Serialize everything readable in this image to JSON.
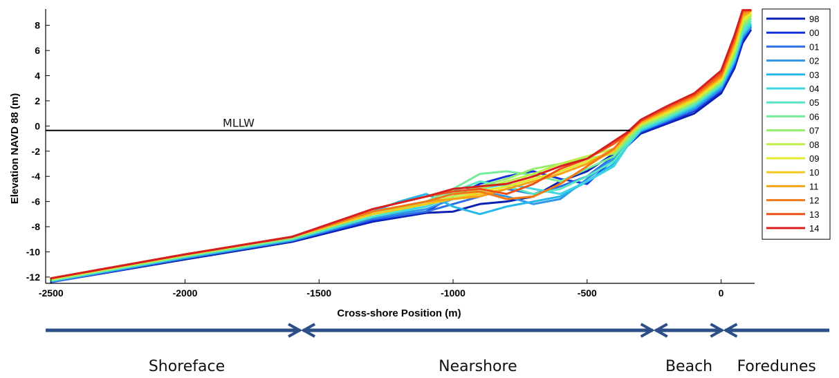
{
  "chart_data": {
    "type": "line",
    "title": "",
    "xlabel": "Cross-shore Position (m)",
    "ylabel": "Elevation NAVD 88 (m)",
    "xlim": [
      -2520,
      125
    ],
    "ylim": [
      -12.5,
      9.3
    ],
    "xticks": [
      -2500,
      -2000,
      -1500,
      -1000,
      -500,
      0
    ],
    "xtick_labels": [
      "-2500",
      "-2000",
      "-1500",
      "-1000",
      "-500",
      "0"
    ],
    "yticks": [
      -12,
      -10,
      -8,
      -6,
      -4,
      -2,
      0,
      2,
      4,
      6,
      8
    ],
    "ytick_labels": [
      "-12",
      "-10",
      "-8",
      "-6",
      "-4",
      "-2",
      "0",
      "2",
      "4",
      "6",
      "8"
    ],
    "grid": false,
    "legend_position": "right",
    "reference_line": {
      "label": "MLLW",
      "y": -0.35
    },
    "series": [
      {
        "name": "98",
        "color": "#0b1fb0",
        "x": [
          -2500,
          -2000,
          -1600,
          -1300,
          -1100,
          -1000,
          -900,
          -800,
          -700,
          -600,
          -500,
          -400,
          -350,
          -300,
          -200,
          -100,
          0,
          50,
          80,
          110
        ],
        "y": [
          -12.4,
          -10.6,
          -9.2,
          -7.6,
          -6.9,
          -6.8,
          -6.2,
          -6.0,
          -5.6,
          -4.4,
          -3.6,
          -2.2,
          -1.6,
          -0.6,
          0.2,
          1.0,
          2.6,
          4.6,
          6.6,
          7.6
        ]
      },
      {
        "name": "00",
        "color": "#1432e0",
        "x": [
          -2500,
          -2000,
          -1600,
          -1300,
          -1100,
          -1000,
          -900,
          -800,
          -700,
          -600,
          -500,
          -400,
          -350,
          -300,
          -200,
          -100,
          0,
          50,
          80,
          110
        ],
        "y": [
          -12.4,
          -10.5,
          -9.1,
          -7.5,
          -6.8,
          -5.6,
          -4.6,
          -4.0,
          -3.6,
          -4.2,
          -4.6,
          -2.6,
          -1.6,
          -0.5,
          0.3,
          1.2,
          2.8,
          4.8,
          6.8,
          7.8
        ]
      },
      {
        "name": "01",
        "color": "#2f6fe6",
        "x": [
          -2500,
          -2000,
          -1600,
          -1300,
          -1100,
          -1000,
          -900,
          -800,
          -700,
          -600,
          -500,
          -400,
          -350,
          -300,
          -200,
          -100,
          0,
          50,
          80,
          110
        ],
        "y": [
          -12.4,
          -10.5,
          -9.1,
          -7.4,
          -6.8,
          -6.2,
          -5.6,
          -5.0,
          -5.4,
          -4.8,
          -4.0,
          -2.4,
          -1.4,
          -0.4,
          0.4,
          1.3,
          2.9,
          5.0,
          7.0,
          7.8
        ]
      },
      {
        "name": "02",
        "color": "#2e95e8",
        "x": [
          -2500,
          -2000,
          -1600,
          -1300,
          -1100,
          -1000,
          -900,
          -800,
          -700,
          -600,
          -500,
          -400,
          -350,
          -300,
          -200,
          -100,
          0,
          50,
          80,
          110
        ],
        "y": [
          -12.3,
          -10.5,
          -9.1,
          -7.3,
          -6.6,
          -5.8,
          -5.2,
          -5.6,
          -6.2,
          -5.8,
          -4.2,
          -2.6,
          -1.5,
          -0.4,
          0.5,
          1.4,
          3.0,
          5.1,
          7.1,
          7.9
        ]
      },
      {
        "name": "03",
        "color": "#25b6ec",
        "x": [
          -2500,
          -2000,
          -1600,
          -1300,
          -1200,
          -1100,
          -1000,
          -900,
          -800,
          -700,
          -600,
          -500,
          -400,
          -350,
          -300,
          -200,
          -100,
          0,
          50,
          80,
          110
        ],
        "y": [
          -12.3,
          -10.4,
          -9.0,
          -6.8,
          -6.0,
          -5.4,
          -6.4,
          -7.0,
          -6.4,
          -6.0,
          -5.6,
          -4.4,
          -3.0,
          -1.6,
          -0.4,
          0.5,
          1.5,
          3.1,
          5.2,
          7.2,
          8.0
        ]
      },
      {
        "name": "04",
        "color": "#3fd4e4",
        "x": [
          -2500,
          -2000,
          -1600,
          -1300,
          -1100,
          -1000,
          -900,
          -800,
          -700,
          -600,
          -500,
          -400,
          -350,
          -300,
          -200,
          -100,
          0,
          50,
          80,
          110
        ],
        "y": [
          -12.3,
          -10.4,
          -9.0,
          -7.2,
          -6.4,
          -5.6,
          -5.0,
          -4.6,
          -5.0,
          -5.4,
          -4.4,
          -3.2,
          -1.6,
          -0.3,
          0.6,
          1.6,
          3.2,
          5.3,
          7.3,
          8.1
        ]
      },
      {
        "name": "05",
        "color": "#55e6c2",
        "x": [
          -2500,
          -2000,
          -1600,
          -1300,
          -1100,
          -1000,
          -900,
          -800,
          -700,
          -600,
          -500,
          -400,
          -350,
          -300,
          -200,
          -100,
          0,
          50,
          80,
          110
        ],
        "y": [
          -12.3,
          -10.4,
          -9.0,
          -7.2,
          -6.2,
          -5.2,
          -4.4,
          -4.8,
          -5.4,
          -5.0,
          -4.0,
          -2.8,
          -1.4,
          -0.2,
          0.7,
          1.7,
          3.3,
          5.5,
          7.6,
          8.3
        ]
      },
      {
        "name": "06",
        "color": "#74ec9a",
        "x": [
          -2500,
          -2000,
          -1600,
          -1300,
          -1100,
          -1000,
          -900,
          -800,
          -700,
          -600,
          -500,
          -400,
          -350,
          -300,
          -200,
          -100,
          0,
          50,
          80,
          110
        ],
        "y": [
          -12.2,
          -10.3,
          -8.9,
          -7.0,
          -6.0,
          -5.0,
          -3.8,
          -3.6,
          -3.9,
          -4.4,
          -3.4,
          -2.4,
          -1.2,
          -0.1,
          0.8,
          1.8,
          3.4,
          5.6,
          7.8,
          8.5
        ]
      },
      {
        "name": "07",
        "color": "#96ec6e",
        "x": [
          -2500,
          -2000,
          -1600,
          -1300,
          -1100,
          -1000,
          -900,
          -800,
          -700,
          -600,
          -500,
          -400,
          -350,
          -300,
          -200,
          -100,
          0,
          50,
          80,
          110
        ],
        "y": [
          -12.2,
          -10.3,
          -8.9,
          -7.0,
          -6.0,
          -5.4,
          -4.8,
          -4.2,
          -3.4,
          -3.0,
          -2.6,
          -2.2,
          -1.0,
          0.0,
          0.9,
          1.9,
          3.5,
          5.8,
          8.0,
          8.7
        ]
      },
      {
        "name": "08",
        "color": "#bfef4a",
        "x": [
          -2500,
          -2000,
          -1600,
          -1300,
          -1100,
          -1000,
          -900,
          -800,
          -700,
          -600,
          -500,
          -400,
          -350,
          -300,
          -200,
          -100,
          0,
          50,
          80,
          110
        ],
        "y": [
          -12.2,
          -10.3,
          -8.8,
          -7.0,
          -6.2,
          -5.6,
          -5.0,
          -4.4,
          -3.8,
          -3.0,
          -2.4,
          -1.8,
          -0.8,
          0.1,
          1.0,
          2.0,
          3.6,
          6.0,
          8.2,
          8.8
        ]
      },
      {
        "name": "09",
        "color": "#e3ea2c",
        "x": [
          -2500,
          -2000,
          -1600,
          -1300,
          -1100,
          -1000,
          -900,
          -800,
          -700,
          -600,
          -500,
          -400,
          -350,
          -300,
          -200,
          -100,
          0,
          50,
          80,
          110
        ],
        "y": [
          -12.1,
          -10.2,
          -8.8,
          -7.0,
          -6.2,
          -5.8,
          -5.2,
          -4.8,
          -4.2,
          -3.6,
          -2.8,
          -2.0,
          -0.8,
          0.2,
          1.1,
          2.1,
          3.7,
          6.2,
          8.4,
          8.9
        ]
      },
      {
        "name": "10",
        "color": "#f6c81c",
        "x": [
          -2500,
          -2000,
          -1600,
          -1300,
          -1100,
          -1000,
          -900,
          -800,
          -700,
          -600,
          -500,
          -400,
          -350,
          -300,
          -200,
          -100,
          0,
          50,
          80,
          110
        ],
        "y": [
          -12.1,
          -10.2,
          -8.8,
          -7.0,
          -6.2,
          -5.8,
          -5.4,
          -5.0,
          -4.4,
          -3.8,
          -3.0,
          -2.0,
          -0.8,
          0.2,
          1.2,
          2.2,
          3.8,
          6.4,
          8.6,
          9.1
        ]
      },
      {
        "name": "11",
        "color": "#f6a214",
        "x": [
          -2500,
          -2000,
          -1600,
          -1300,
          -1100,
          -1000,
          -900,
          -800,
          -700,
          -600,
          -500,
          -400,
          -350,
          -300,
          -200,
          -100,
          0,
          50,
          80,
          110
        ],
        "y": [
          -12.1,
          -10.2,
          -8.8,
          -6.8,
          -6.0,
          -5.8,
          -5.6,
          -5.0,
          -4.4,
          -3.8,
          -3.0,
          -1.8,
          -0.6,
          0.3,
          1.3,
          2.3,
          3.9,
          6.6,
          8.8,
          9.1
        ]
      },
      {
        "name": "12",
        "color": "#f27a16",
        "x": [
          -2500,
          -2000,
          -1600,
          -1300,
          -1100,
          -1000,
          -900,
          -800,
          -700,
          -600,
          -500,
          -400,
          -350,
          -300,
          -200,
          -100,
          0,
          50,
          80,
          110
        ],
        "y": [
          -12.1,
          -10.2,
          -8.8,
          -6.8,
          -6.0,
          -5.4,
          -5.2,
          -5.8,
          -5.6,
          -4.6,
          -3.2,
          -1.8,
          -0.6,
          0.4,
          1.4,
          2.4,
          4.0,
          6.8,
          9.0,
          9.2
        ]
      },
      {
        "name": "13",
        "color": "#ee5018",
        "x": [
          -2500,
          -2000,
          -1600,
          -1300,
          -1100,
          -1000,
          -900,
          -800,
          -700,
          -600,
          -500,
          -400,
          -350,
          -300,
          -200,
          -100,
          0,
          50,
          80,
          110
        ],
        "y": [
          -12.1,
          -10.2,
          -8.8,
          -6.6,
          -5.6,
          -5.2,
          -5.0,
          -5.4,
          -4.6,
          -3.4,
          -2.6,
          -1.4,
          -0.6,
          0.4,
          1.5,
          2.5,
          4.2,
          7.0,
          9.2,
          9.2
        ]
      },
      {
        "name": "14",
        "color": "#d81f1f",
        "x": [
          -2500,
          -2000,
          -1600,
          -1300,
          -1100,
          -1000,
          -900,
          -800,
          -700,
          -600,
          -500,
          -400,
          -350,
          -300,
          -200,
          -100,
          0,
          50,
          80,
          110
        ],
        "y": [
          -12.1,
          -10.2,
          -8.8,
          -6.6,
          -5.6,
          -5.0,
          -4.8,
          -4.6,
          -4.0,
          -3.2,
          -2.6,
          -1.2,
          -0.5,
          0.5,
          1.6,
          2.6,
          4.4,
          7.2,
          9.2,
          9.2
        ]
      }
    ]
  },
  "zones": [
    {
      "label": "Shoreface",
      "from": -2520,
      "to": -1565
    },
    {
      "label": "Nearshore",
      "from": -1565,
      "to": -250
    },
    {
      "label": "Beach",
      "from": -250,
      "to": 10
    },
    {
      "label": "Foredunes",
      "from": 10,
      "to": 125
    }
  ],
  "colors": {
    "axis": "#000000",
    "zone_arrow": "#2b4f86",
    "reference_line": "#000000"
  }
}
